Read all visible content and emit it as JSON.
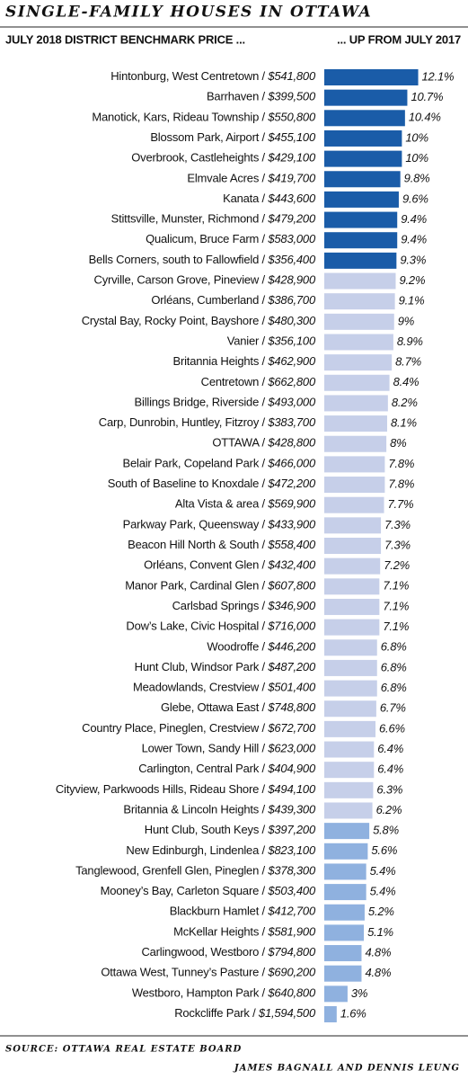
{
  "chart_data": {
    "type": "bar",
    "orientation": "horizontal",
    "title": "SINGLE-FAMILY HOUSES IN OTTAWA",
    "left_header": "JULY 2018 DISTRICT BENCHMARK PRICE ...",
    "right_header": "... UP FROM JULY 2017",
    "source": "SOURCE: OTTAWA REAL ESTATE BOARD",
    "credit": "JAMES BAGNALL AND DENNIS LEUNG",
    "separator": " / ",
    "categories": [
      "Hintonburg, West Centretown",
      "Barrhaven",
      "Manotick, Kars, Rideau Township",
      "Blossom Park, Airport",
      "Overbrook, Castleheights",
      "Elmvale Acres",
      "Kanata",
      "Stittsville, Munster, Richmond",
      "Qualicum, Bruce Farm",
      "Bells Corners, south to Fallowfield",
      "Cyrville, Carson Grove, Pineview",
      "Orléans, Cumberland",
      "Crystal Bay, Rocky Point, Bayshore",
      "Vanier",
      "Britannia Heights",
      "Centretown",
      "Billings Bridge, Riverside",
      "Carp, Dunrobin, Huntley, Fitzroy",
      "OTTAWA",
      "Belair Park, Copeland Park",
      "South of Baseline to Knoxdale",
      "Alta Vista & area",
      "Parkway Park, Queensway",
      "Beacon Hill North & South",
      "Orléans, Convent Glen",
      "Manor Park, Cardinal Glen",
      "Carlsbad Springs",
      "Dow’s Lake, Civic Hospital",
      "Woodroffe",
      "Hunt Club, Windsor Park",
      "Meadowlands, Crestview",
      "Glebe, Ottawa East",
      "Country Place, Pineglen, Crestview",
      "Lower Town, Sandy Hill",
      "Carlington, Central Park",
      "Cityview, Parkwoods Hills, Rideau Shore",
      "Britannia & Lincoln Heights",
      "Hunt Club, South Keys",
      "New Edinburgh, Lindenlea",
      "Tanglewood, Grenfell Glen, Pineglen",
      "Mooney’s Bay, Carleton Square",
      "Blackburn Hamlet",
      "McKellar Heights",
      "Carlingwood, Westboro",
      "Ottawa West, Tunney’s Pasture",
      "Westboro, Hampton Park",
      "Rockcliffe Park"
    ],
    "prices": [
      "$541,800",
      "$399,500",
      "$550,800",
      "$455,100",
      "$429,100",
      "$419,700",
      "$443,600",
      "$479,200",
      "$583,000",
      "$356,400",
      "$428,900",
      "$386,700",
      "$480,300",
      "$356,100",
      "$462,900",
      "$662,800",
      "$493,000",
      "$383,700",
      "$428,800",
      "$466,000",
      "$472,200",
      "$569,900",
      "$433,900",
      "$558,400",
      "$432,400",
      "$607,800",
      "$346,900",
      "$716,000",
      "$446,200",
      "$487,200",
      "$501,400",
      "$748,800",
      "$672,700",
      "$623,000",
      "$404,900",
      "$494,100",
      "$439,300",
      "$397,200",
      "$823,100",
      "$378,300",
      "$503,400",
      "$412,700",
      "$581,900",
      "$794,800",
      "$690,200",
      "$640,800",
      "$1,594,500"
    ],
    "values": [
      12.1,
      10.7,
      10.4,
      10,
      10,
      9.8,
      9.6,
      9.4,
      9.4,
      9.3,
      9.2,
      9.1,
      9,
      8.9,
      8.7,
      8.4,
      8.2,
      8.1,
      8,
      7.8,
      7.8,
      7.7,
      7.3,
      7.3,
      7.2,
      7.1,
      7.1,
      7.1,
      6.8,
      6.8,
      6.8,
      6.7,
      6.6,
      6.4,
      6.4,
      6.3,
      6.2,
      5.8,
      5.6,
      5.4,
      5.4,
      5.2,
      5.1,
      4.8,
      4.8,
      3,
      1.6
    ],
    "value_labels": [
      "12.1%",
      "10.7%",
      "10.4%",
      "10%",
      "10%",
      "9.8%",
      "9.6%",
      "9.4%",
      "9.4%",
      "9.3%",
      "9.2%",
      "9.1%",
      "9%",
      "8.9%",
      "8.7%",
      "8.4%",
      "8.2%",
      "8.1%",
      "8%",
      "7.8%",
      "7.8%",
      "7.7%",
      "7.3%",
      "7.3%",
      "7.2%",
      "7.1%",
      "7.1%",
      "7.1%",
      "6.8%",
      "6.8%",
      "6.8%",
      "6.7%",
      "6.6%",
      "6.4%",
      "6.4%",
      "6.3%",
      "6.2%",
      "5.8%",
      "5.6%",
      "5.4%",
      "5.4%",
      "5.2%",
      "5.1%",
      "4.8%",
      "4.8%",
      "3%",
      "1.6%"
    ],
    "bar_colors": [
      "#1a5ca8",
      "#1a5ca8",
      "#1a5ca8",
      "#1a5ca8",
      "#1a5ca8",
      "#1a5ca8",
      "#1a5ca8",
      "#1a5ca8",
      "#1a5ca8",
      "#1a5ca8",
      "#c6cfe9",
      "#c6cfe9",
      "#c6cfe9",
      "#c6cfe9",
      "#c6cfe9",
      "#c6cfe9",
      "#c6cfe9",
      "#c6cfe9",
      "#c6cfe9",
      "#c6cfe9",
      "#c6cfe9",
      "#c6cfe9",
      "#c6cfe9",
      "#c6cfe9",
      "#c6cfe9",
      "#c6cfe9",
      "#c6cfe9",
      "#c6cfe9",
      "#c6cfe9",
      "#c6cfe9",
      "#c6cfe9",
      "#c6cfe9",
      "#c6cfe9",
      "#c6cfe9",
      "#c6cfe9",
      "#c6cfe9",
      "#c6cfe9",
      "#8fb1df",
      "#8fb1df",
      "#8fb1df",
      "#8fb1df",
      "#8fb1df",
      "#8fb1df",
      "#8fb1df",
      "#8fb1df",
      "#8fb1df",
      "#8fb1df"
    ],
    "xlim": [
      0,
      12.5
    ]
  }
}
